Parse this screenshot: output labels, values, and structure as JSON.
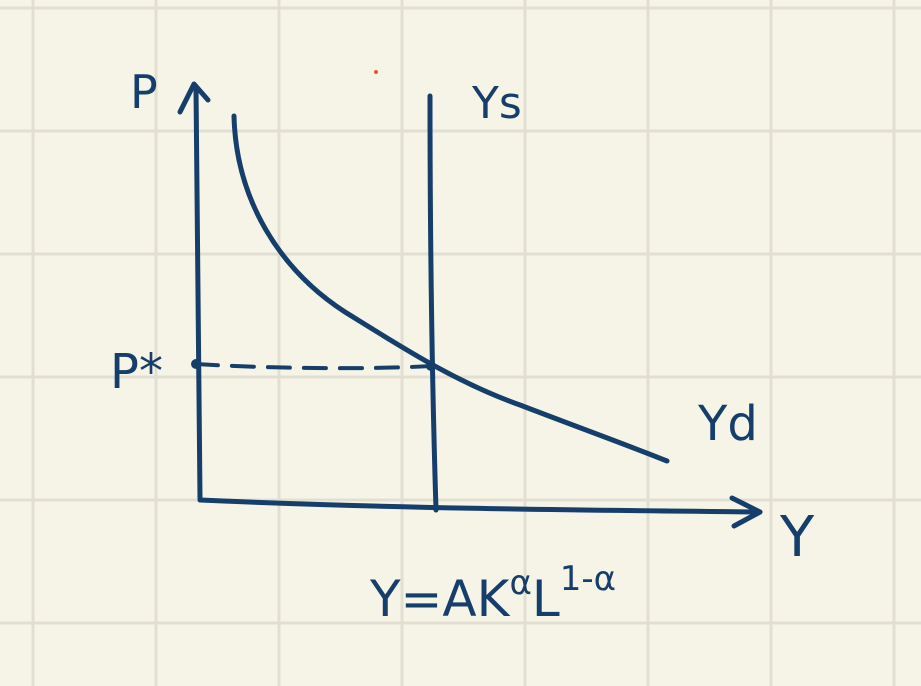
{
  "colors": {
    "paper": "#f6f4e7",
    "grid": "#e2dfd2",
    "ink": "#163e6a",
    "dot": "#e8552b"
  },
  "labels": {
    "y_axis": "P",
    "x_axis": "Y",
    "supply": "Ys",
    "demand": "Yd",
    "equilibrium_price": "P*",
    "production_function": "Y=AKαL1-α"
  },
  "production_function_parts": {
    "base": "Y=AK",
    "alpha": "α",
    "labor": "L",
    "exponent": "1-α"
  }
}
